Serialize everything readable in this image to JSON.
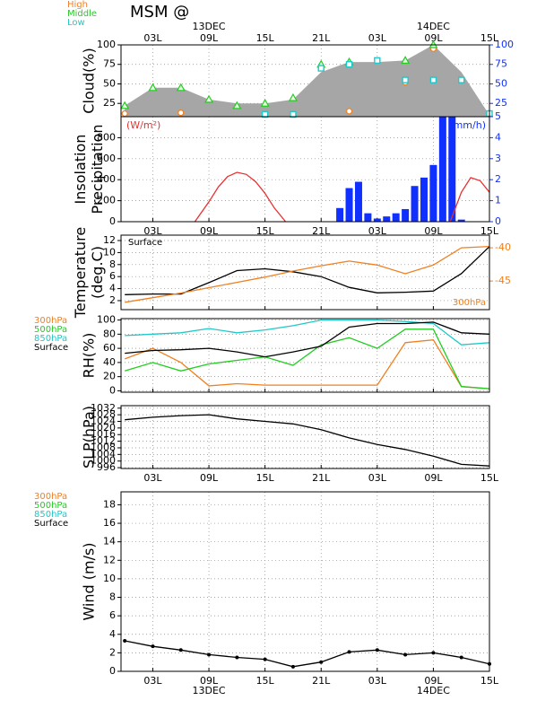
{
  "chart_data": [
    {
      "type": "cloud",
      "title": "MSM @",
      "ylabel": [
        "Cloud(%)"
      ],
      "x": [
        0,
        3,
        6,
        9,
        12,
        15,
        18,
        21,
        24,
        27,
        30,
        33,
        36,
        39
      ],
      "xlim": [
        -0.4,
        39
      ],
      "xticks": [
        {
          "value": 3,
          "label": "03L"
        },
        {
          "value": 9,
          "label": "09L"
        },
        {
          "value": 15,
          "label": "15L"
        },
        {
          "value": 21,
          "label": "21L"
        },
        {
          "value": 27,
          "label": "03L"
        },
        {
          "value": 33,
          "label": "09L"
        },
        {
          "value": 39,
          "label": "15L"
        }
      ],
      "xtick_labels": "top",
      "date_labels": [
        {
          "value": 9,
          "label": "13DEC"
        },
        {
          "value": 33,
          "label": "14DEC"
        }
      ],
      "ylim": [
        8,
        100
      ],
      "yticks": [
        25,
        50,
        75,
        100
      ],
      "y2lim": [
        8,
        100
      ],
      "y2ticks": [
        25,
        50,
        75,
        100
      ],
      "y2_color": "#1030ff",
      "area": {
        "color": "#a6a6a6",
        "values": [
          22,
          45,
          45,
          30,
          25,
          25,
          30,
          65,
          78,
          78,
          80,
          100,
          65,
          10
        ]
      },
      "series": [
        {
          "name": "High",
          "color": "#f08020",
          "marker": "circle",
          "values": [
            12,
            null,
            13,
            null,
            null,
            null,
            null,
            null,
            15,
            null,
            52,
            95,
            null,
            null
          ]
        },
        {
          "name": "Middle",
          "color": "#22cc22",
          "marker": "triangle",
          "values": [
            22,
            45,
            45,
            30,
            22,
            25,
            32,
            75,
            78,
            null,
            80,
            100,
            null,
            null
          ]
        },
        {
          "name": "Low",
          "color": "#20c8c8",
          "marker": "square",
          "values": [
            null,
            null,
            null,
            null,
            null,
            11,
            11,
            70,
            75,
            80,
            55,
            55,
            55,
            12
          ]
        }
      ]
    },
    {
      "type": "insolation",
      "ylabel": [
        "Insolation",
        "Precipitation"
      ],
      "xlim": [
        -0.4,
        39
      ],
      "xticks": [
        {
          "value": 3,
          "label": "03L"
        },
        {
          "value": 9,
          "label": "09L"
        },
        {
          "value": 15,
          "label": "15L"
        },
        {
          "value": 21,
          "label": "21L"
        },
        {
          "value": 27,
          "label": "03L"
        },
        {
          "value": 33,
          "label": "09L"
        },
        {
          "value": 39,
          "label": "15L"
        }
      ],
      "xtick_labels": "bottom",
      "ylim": [
        0,
        1000
      ],
      "yticks": [
        0,
        200,
        400,
        600,
        800
      ],
      "y2lim": [
        0,
        5
      ],
      "y2ticks": [
        0,
        1,
        2,
        3,
        4,
        5
      ],
      "y2_color": "#1030ff",
      "unit_label": "(W/m²)",
      "y2_unit_label": "(mm/h)",
      "line": {
        "color": "#e83030",
        "x": [
          7.5,
          9,
          10,
          11,
          12,
          13,
          14,
          15,
          16,
          17.2,
          26,
          34.8,
          36,
          37,
          38,
          39
        ],
        "values": [
          0,
          190,
          330,
          430,
          470,
          450,
          380,
          270,
          130,
          0,
          null,
          0,
          280,
          420,
          390,
          280
        ]
      },
      "bars": {
        "color": "#1030ff",
        "x": [
          23,
          24,
          25,
          26,
          27,
          28,
          29,
          30,
          31,
          32,
          33,
          34,
          35,
          36
        ],
        "values": [
          0.65,
          1.6,
          1.9,
          0.4,
          0.15,
          0.25,
          0.4,
          0.6,
          1.7,
          2.1,
          2.7,
          5,
          5,
          0.1
        ]
      }
    },
    {
      "type": "line",
      "ylabel": [
        "Temperature",
        "(deg.C)"
      ],
      "x": [
        0,
        3,
        6,
        9,
        12,
        15,
        18,
        21,
        24,
        27,
        30,
        33,
        36,
        39
      ],
      "xlim": [
        -0.4,
        39
      ],
      "xticks": [
        {
          "value": 3,
          "label": "03L"
        },
        {
          "value": 9,
          "label": "09L"
        },
        {
          "value": 15,
          "label": "15L"
        },
        {
          "value": 21,
          "label": "21L"
        },
        {
          "value": 27,
          "label": "03L"
        },
        {
          "value": 33,
          "label": "09L"
        },
        {
          "value": 39,
          "label": "15L"
        }
      ],
      "xtick_labels": "none",
      "ylim": [
        0.5,
        12.9
      ],
      "yticks": [
        2,
        4,
        6,
        8,
        10,
        12
      ],
      "y2lim": [
        -49.3,
        -38.1
      ],
      "y2ticks": [
        -45,
        -40
      ],
      "y2_color": "#f08020",
      "series": [
        {
          "name": "Surface",
          "color": "#000000",
          "label_pos": "top-left",
          "values": [
            3.0,
            3.1,
            3.1,
            5.0,
            7.0,
            7.3,
            6.8,
            6.0,
            4.2,
            3.3,
            3.4,
            3.6,
            6.5,
            11.0
          ]
        },
        {
          "name": "300hPa",
          "color": "#f08020",
          "axis": "y2",
          "label_pos": "bottom-right",
          "values": [
            -48.2,
            -47.5,
            -46.8,
            -46,
            -45.2,
            -44.4,
            -43.5,
            -42.7,
            -42,
            -42.6,
            -43.9,
            -42.6,
            -40,
            -39.8
          ]
        }
      ]
    },
    {
      "type": "line",
      "ylabel": [
        "RH(%)"
      ],
      "x": [
        0,
        3,
        6,
        9,
        12,
        15,
        18,
        21,
        24,
        27,
        30,
        33,
        36,
        39
      ],
      "xlim": [
        -0.4,
        39
      ],
      "xticks": [
        {
          "value": 3,
          "label": "03L"
        },
        {
          "value": 9,
          "label": "09L"
        },
        {
          "value": 15,
          "label": "15L"
        },
        {
          "value": 21,
          "label": "21L"
        },
        {
          "value": 27,
          "label": "03L"
        },
        {
          "value": 33,
          "label": "09L"
        },
        {
          "value": 39,
          "label": "15L"
        }
      ],
      "xtick_labels": "none",
      "ylim": [
        -2,
        102
      ],
      "yticks": [
        0,
        20,
        40,
        60,
        80,
        100
      ],
      "legend": "left",
      "series": [
        {
          "name": "300hPa",
          "color": "#f08020",
          "values": [
            45,
            60,
            40,
            7,
            10,
            8,
            8,
            8,
            8,
            8,
            68,
            72,
            6,
            3
          ]
        },
        {
          "name": "500hPa",
          "color": "#22cc22",
          "values": [
            28,
            40,
            28,
            38,
            43,
            48,
            36,
            65,
            75,
            60,
            87,
            87,
            6,
            3
          ]
        },
        {
          "name": "850hPa",
          "color": "#20c8c8",
          "values": [
            78,
            80,
            82,
            88,
            82,
            86,
            92,
            100,
            100,
            100,
            98,
            95,
            65,
            68
          ]
        },
        {
          "name": "Surface",
          "color": "#000000",
          "values": [
            53,
            57,
            58,
            60,
            55,
            48,
            55,
            63,
            90,
            95,
            95,
            97,
            82,
            80
          ]
        }
      ]
    },
    {
      "type": "line",
      "ylabel": [
        "SLP(hPa)"
      ],
      "x": [
        0,
        3,
        6,
        9,
        12,
        15,
        18,
        21,
        24,
        27,
        30,
        33,
        36,
        39
      ],
      "xlim": [
        -0.4,
        39
      ],
      "xticks": [
        {
          "value": 3,
          "label": "03L"
        },
        {
          "value": 9,
          "label": "09L"
        },
        {
          "value": 15,
          "label": "15L"
        },
        {
          "value": 21,
          "label": "21L"
        },
        {
          "value": 27,
          "label": "03L"
        },
        {
          "value": 33,
          "label": "09L"
        },
        {
          "value": 39,
          "label": "15L"
        }
      ],
      "xtick_labels": "bottom",
      "ylim": [
        995.5,
        1033.5
      ],
      "yticks": [
        996,
        1000,
        1004,
        1008,
        1012,
        1016,
        1020,
        1024,
        1028,
        1032
      ],
      "series": [
        {
          "color": "#000000",
          "values": [
            1025,
            1026.5,
            1027.5,
            1028,
            1025.5,
            1024,
            1022.5,
            1019,
            1014,
            1010,
            1007,
            1003,
            998,
            997
          ]
        }
      ]
    },
    {
      "type": "line",
      "ylabel": [
        "Wind (m/s)"
      ],
      "x": [
        0,
        3,
        6,
        9,
        12,
        15,
        18,
        21,
        24,
        27,
        30,
        33,
        36,
        39
      ],
      "xlim": [
        -0.4,
        39
      ],
      "xticks": [
        {
          "value": 3,
          "label": "03L"
        },
        {
          "value": 9,
          "label": "09L"
        },
        {
          "value": 15,
          "label": "15L"
        },
        {
          "value": 21,
          "label": "21L"
        },
        {
          "value": 27,
          "label": "03L"
        },
        {
          "value": 33,
          "label": "09L"
        },
        {
          "value": 39,
          "label": "15L"
        }
      ],
      "xtick_labels": "bottom",
      "date_labels": [
        {
          "value": 9,
          "label": "13DEC"
        },
        {
          "value": 33,
          "label": "14DEC"
        }
      ],
      "ylim": [
        0,
        19.4
      ],
      "yticks": [
        0,
        2,
        4,
        6,
        8,
        10,
        12,
        14,
        16,
        18
      ],
      "level_legend": [
        {
          "name": "300hPa",
          "color": "#f08020"
        },
        {
          "name": "500hPa",
          "color": "#22cc22"
        },
        {
          "name": "850hPa",
          "color": "#20c8c8"
        },
        {
          "name": "Surface",
          "color": "#000000"
        }
      ],
      "series": [
        {
          "color": "#000000",
          "markers": true,
          "values": [
            3.3,
            2.7,
            2.3,
            1.8,
            1.5,
            1.3,
            0.5,
            1.0,
            2.1,
            2.3,
            1.8,
            2.0,
            1.5,
            0.8
          ]
        }
      ]
    }
  ]
}
